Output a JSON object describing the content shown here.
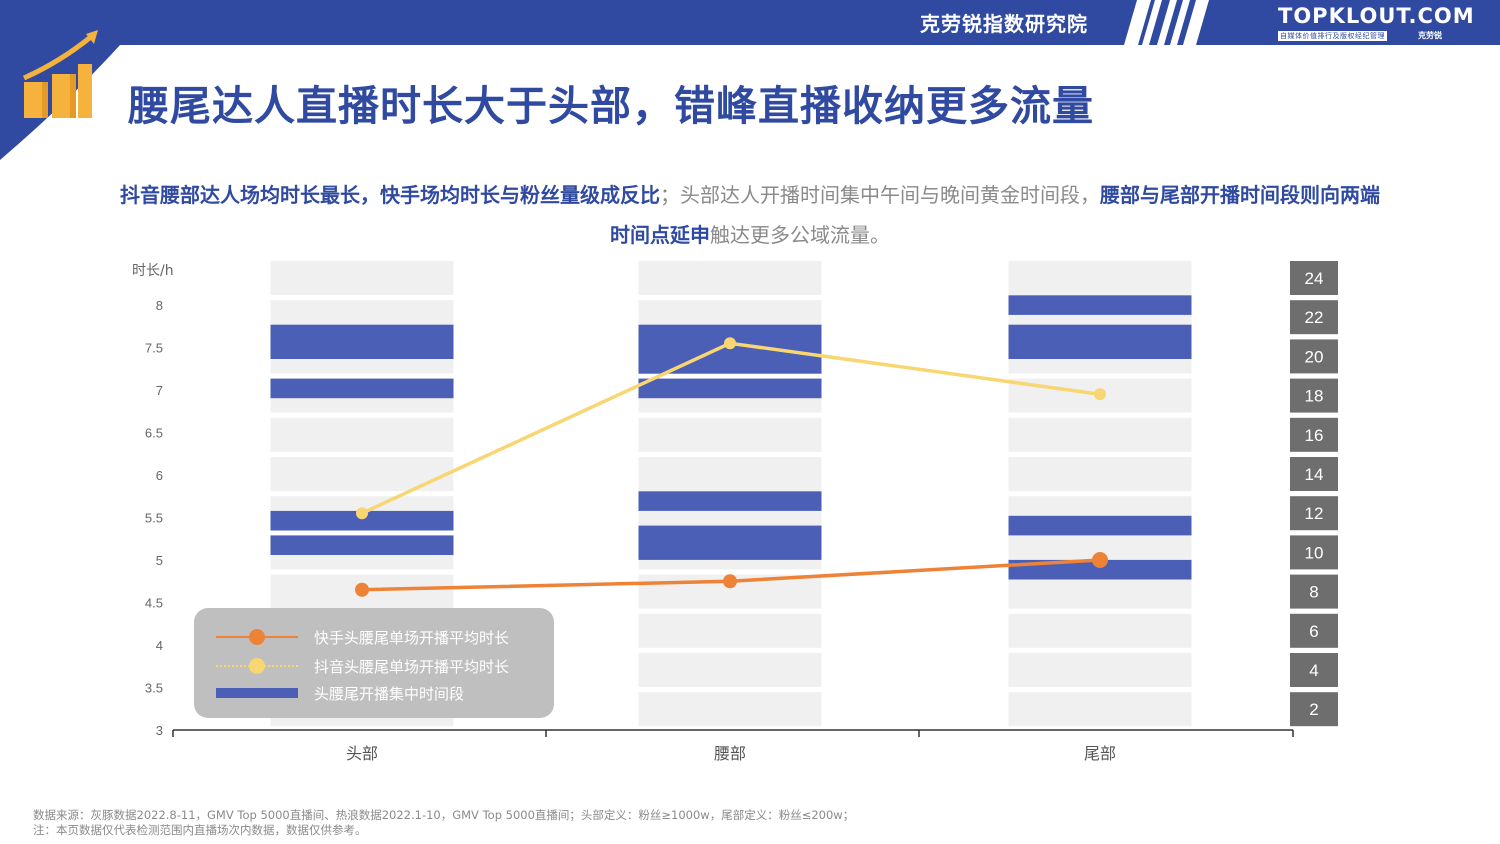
{
  "header": {
    "brand_cn": "克劳锐指数研究院",
    "logo_main": "TOPKLOUT.COM",
    "logo_tag": "自媒体价值排行及版权经纪管理",
    "logo_tag_right": "克劳锐"
  },
  "page_title": "腰尾达人直播时长大于头部，错峰直播收纳更多流量",
  "subtitle": {
    "part1": "抖音腰部达人场均时长最长，快手场均时长与粉丝量级成反比",
    "part2": "；头部达人开播时间集中午间与晚间黄金时间段，",
    "part3": "腰部与尾部开播时间段则向两端时间点延申",
    "part4": "触达更多公域流量。"
  },
  "source": {
    "line1": "数据来源：灰豚数据2022.8-11，GMV Top 5000直播间、热浪数据2022.1-10，GMV Top 5000直播间；头部定义：粉丝≥1000w，尾部定义：粉丝≤200w；",
    "line2": "注：本页数据仅代表检测范围内直播场次内数据，数据仅供参考。"
  },
  "colors": {
    "brand_blue": "#2f4aa0",
    "bar_blue": "#4a5fb5",
    "kuaishou_orange": "#ee8236",
    "douyin_yellow": "#f8d672",
    "slot_gray": "#f0f0f0",
    "right_axis_box": "#6e6e6e"
  },
  "chart_data": {
    "type": "line",
    "categories": [
      "头部",
      "腰部",
      "尾部"
    ],
    "y_left": {
      "label": "时长/h",
      "min": 3,
      "max": 8,
      "ticks": [
        "3",
        "3.5",
        "4",
        "4.5",
        "5",
        "5.5",
        "6",
        "6.5",
        "7",
        "7.5",
        "8"
      ]
    },
    "y_right": {
      "min": 0,
      "max": 24,
      "ticks": [
        "2",
        "4",
        "6",
        "8",
        "10",
        "12",
        "14",
        "16",
        "18",
        "20",
        "22",
        "24"
      ],
      "note": "hour of day"
    },
    "series": [
      {
        "name": "快手头腰尾单场开播平均时长",
        "type": "line",
        "color": "#ee8236",
        "values": [
          4.65,
          4.75,
          5.0
        ]
      },
      {
        "name": "抖音头腰尾单场开播平均时长",
        "type": "line",
        "color": "#f8d672",
        "values": [
          5.55,
          7.55,
          6.95
        ]
      },
      {
        "name": "头腰尾开播集中时间段",
        "type": "range-bar",
        "unit": "hour of day",
        "color": "#4a5fb5",
        "ranges": [
          [
            [
              17,
              18
            ],
            [
              19,
              20.75
            ],
            [
              9,
              10
            ],
            [
              10.25,
              11.25
            ]
          ],
          [
            [
              17,
              18
            ],
            [
              18.25,
              20.75
            ],
            [
              11.25,
              12.25
            ],
            [
              8.75,
              10.5
            ]
          ],
          [
            [
              21.25,
              22.25
            ],
            [
              19,
              20.75
            ],
            [
              10,
              11
            ],
            [
              7.75,
              8.75
            ]
          ]
        ]
      }
    ],
    "legend_position": "bottom-left"
  }
}
